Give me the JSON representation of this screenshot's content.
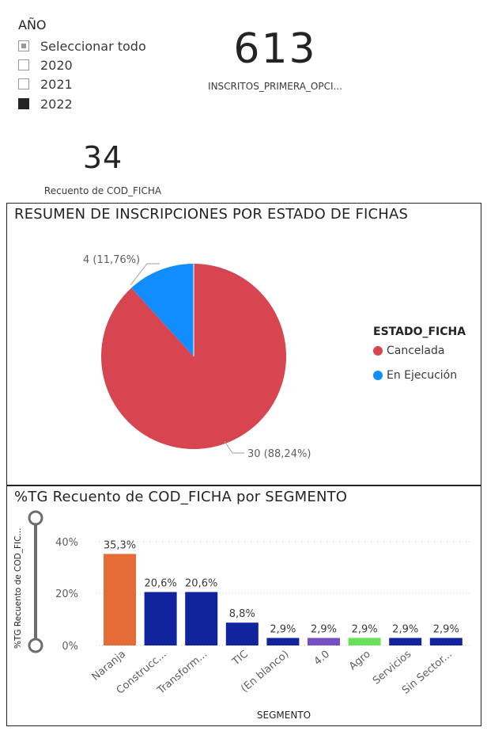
{
  "slicer": {
    "title": "AÑO",
    "items": [
      {
        "label": "Seleccionar todo",
        "state": "partial"
      },
      {
        "label": "2020",
        "state": "unchecked"
      },
      {
        "label": "2021",
        "state": "unchecked"
      },
      {
        "label": "2022",
        "state": "checked"
      }
    ]
  },
  "card_inscritos": {
    "value": "613",
    "label": "INSCRITOS_PRIMERA_OPCI..."
  },
  "card_fichas": {
    "value": "34",
    "label": "Recuento de COD_FICHA"
  },
  "pie_visual": {
    "title": "RESUMEN DE INSCRIPCIONES POR ESTADO DE FICHAS",
    "legend_title": "ESTADO_FICHA",
    "legend": [
      {
        "label": "Cancelada",
        "color": "#d64550"
      },
      {
        "label": "En Ejecución",
        "color": "#118dff"
      }
    ],
    "labels": {
      "cancelada": "30 (88,24%)",
      "ejecucion": "4 (11,76%)"
    }
  },
  "bar_visual": {
    "title": "%TG Recuento de COD_FICHA por SEGMENTO",
    "ylabel": "%TG Recuento de COD_FIC...",
    "xlabel": "SEGMENTO",
    "yticks": [
      "40%",
      "20%",
      "0%"
    ]
  },
  "chart_data": [
    {
      "type": "pie",
      "title": "RESUMEN DE INSCRIPCIONES POR ESTADO DE FICHAS",
      "legend_title": "ESTADO_FICHA",
      "legend_position": "right",
      "categories": [
        "Cancelada",
        "En Ejecución"
      ],
      "values": [
        30,
        4
      ],
      "percent_labels": [
        "30 (88,24%)",
        "4 (11,76%)"
      ],
      "colors": [
        "#d64550",
        "#118dff"
      ]
    },
    {
      "type": "bar",
      "title": "%TG Recuento de COD_FICHA por SEGMENTO",
      "xlabel": "SEGMENTO",
      "ylabel": "%TG Recuento de COD_FIC...",
      "ylim": [
        0,
        0.45
      ],
      "grid": true,
      "categories": [
        "Naranja",
        "Construcc...",
        "Transform...",
        "TIC",
        "(En blanco)",
        "4.0",
        "Agro",
        "Servicios",
        "Sin Sector..."
      ],
      "values": [
        35.3,
        20.6,
        20.6,
        8.8,
        2.9,
        2.9,
        2.9,
        2.9,
        2.9
      ],
      "data_labels": [
        "35,3%",
        "20,6%",
        "20,6%",
        "8,8%",
        "2,9%",
        "2,9%",
        "2,9%",
        "2,9%",
        "2,9%"
      ],
      "colors": [
        "#e66c37",
        "#12239e",
        "#12239e",
        "#12239e",
        "#12239e",
        "#744ec2",
        "#6be05a",
        "#12239e",
        "#12239e"
      ]
    }
  ]
}
